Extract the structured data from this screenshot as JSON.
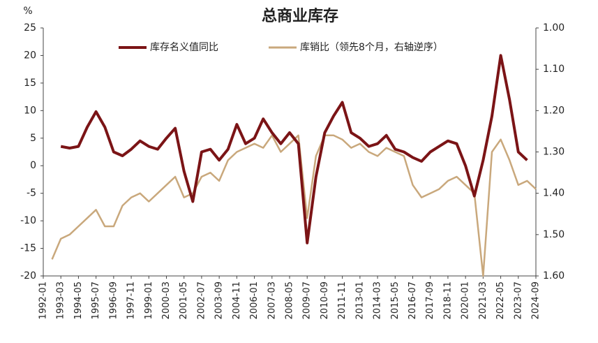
{
  "chart_data": {
    "type": "line",
    "title": "总商业库存",
    "y_label": "%",
    "categories": [
      "1992-01",
      null,
      "1993-03",
      null,
      "1994-05",
      null,
      "1995-07",
      null,
      "1996-09",
      null,
      "1997-11",
      null,
      "1999-01",
      null,
      "2000-03",
      null,
      "2001-05",
      null,
      "2002-07",
      null,
      "2003-09",
      null,
      "2004-11",
      null,
      "2006-01",
      null,
      "2007-03",
      null,
      "2008-05",
      null,
      "2009-07",
      null,
      "2010-09",
      null,
      "2011-11",
      null,
      "2013-01",
      null,
      "2014-03",
      null,
      "2015-05",
      null,
      "2016-07",
      null,
      "2017-09",
      null,
      "2018-11",
      null,
      "2020-01",
      null,
      "2021-03",
      null,
      "2022-05",
      null,
      "2023-07",
      null,
      "2024-09"
    ],
    "series": [
      {
        "name": "库存名义值同比",
        "color": "#7b1416",
        "axis": "y",
        "values": [
          null,
          null,
          3.5,
          3.2,
          3.5,
          7,
          9.8,
          7,
          2.5,
          1.8,
          3,
          4.5,
          3.5,
          3,
          5,
          6.8,
          -1,
          -6.5,
          2.5,
          3,
          1,
          3,
          7.5,
          4,
          5,
          8.5,
          6,
          4,
          6,
          4,
          -14,
          -2,
          6,
          9,
          11.5,
          6,
          5,
          3.5,
          4,
          5.5,
          3,
          2.5,
          1.5,
          0.8,
          2.5,
          3.5,
          4.5,
          4,
          0,
          -5.5,
          1,
          9,
          20,
          12,
          2.5,
          1,
          null
        ]
      },
      {
        "name": "库销比（领先8个月，右轴逆序）",
        "color": "#c9a87c",
        "axis": "y2",
        "values": [
          null,
          1.56,
          1.51,
          1.5,
          1.48,
          1.46,
          1.44,
          1.48,
          1.48,
          1.43,
          1.41,
          1.4,
          1.42,
          1.4,
          1.38,
          1.36,
          1.41,
          1.4,
          1.36,
          1.35,
          1.37,
          1.32,
          1.3,
          1.29,
          1.28,
          1.29,
          1.26,
          1.3,
          1.28,
          1.26,
          1.46,
          1.31,
          1.26,
          1.26,
          1.27,
          1.29,
          1.28,
          1.3,
          1.31,
          1.29,
          1.3,
          1.31,
          1.38,
          1.41,
          1.4,
          1.39,
          1.37,
          1.36,
          1.38,
          1.4,
          1.6,
          1.3,
          1.27,
          1.32,
          1.38,
          1.37,
          1.39
        ]
      }
    ],
    "ylim": [
      -20,
      25
    ],
    "yticks": [
      -20,
      -15,
      -10,
      -5,
      0,
      5,
      10,
      15,
      20,
      25
    ],
    "y2lim": [
      1.6,
      1.0
    ],
    "y2_inverted": true,
    "y2ticks": [
      {
        "value": 1,
        "label": "1.00"
      },
      {
        "value": 1.1,
        "label": "1.10"
      },
      {
        "value": 1.2,
        "label": "1.20"
      },
      {
        "value": 1.3,
        "label": "1.30"
      },
      {
        "value": 1.4,
        "label": "1.40"
      },
      {
        "value": 1.5,
        "label": "1.50"
      },
      {
        "value": 1.6,
        "label": "1.60"
      }
    ],
    "legend": "top",
    "grid": false
  }
}
